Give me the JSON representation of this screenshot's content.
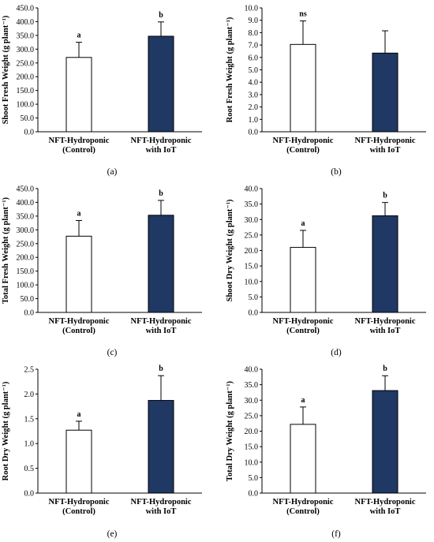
{
  "colors": {
    "control_fill": "#ffffff",
    "iot_fill": "#1f3864",
    "bar_stroke": "#000000",
    "axis": "#000000"
  },
  "chart_data": [
    {
      "type": "bar",
      "panel_label": "(a)",
      "ylabel": "Shoot Fresh Weight (g plant⁻¹)",
      "categories": [
        "NFT-Hydroponic\n(Control)",
        "NFT-Hydroponic\nwith IoT"
      ],
      "values": [
        270,
        347
      ],
      "errors": [
        55,
        52
      ],
      "letters": [
        "a",
        "b"
      ],
      "ylim": [
        0,
        450
      ],
      "yticks": [
        "0.0",
        "50.0",
        "100.0",
        "150.0",
        "200.0",
        "250.0",
        "300.0",
        "350.0",
        "400.0",
        "450.0"
      ]
    },
    {
      "type": "bar",
      "panel_label": "(b)",
      "ylabel": "Root Fresh Weight (g plant⁻¹)",
      "categories": [
        "NFT-Hydroponic\n(Control)",
        "NFT-Hydroponic\nwith IoT"
      ],
      "values": [
        7.05,
        6.35
      ],
      "errors": [
        1.9,
        1.8
      ],
      "letters": [
        "ns",
        ""
      ],
      "ylim": [
        0,
        10
      ],
      "yticks": [
        "0.0",
        "1.0",
        "2.0",
        "3.0",
        "4.0",
        "5.0",
        "6.0",
        "7.0",
        "8.0",
        "9.0",
        "10.0"
      ]
    },
    {
      "type": "bar",
      "panel_label": "(c)",
      "ylabel": "Total Fresh Weight (g plant⁻¹)",
      "categories": [
        "NFT-Hydroponic\n(Control)",
        "NFT-Hydroponic\nwith IoT"
      ],
      "values": [
        277,
        353
      ],
      "errors": [
        57,
        54
      ],
      "letters": [
        "a",
        "b"
      ],
      "ylim": [
        0,
        450
      ],
      "yticks": [
        "0.0",
        "50.0",
        "100.0",
        "150.0",
        "200.0",
        "250.0",
        "300.0",
        "350.0",
        "400.0",
        "450.0"
      ]
    },
    {
      "type": "bar",
      "panel_label": "(d)",
      "ylabel": "Shoot Dry Weight (g plant⁻¹)",
      "categories": [
        "NFT-Hydroponic\n(Control)",
        "NFT-Hydroponic\nwith IoT"
      ],
      "values": [
        21.0,
        31.2
      ],
      "errors": [
        5.5,
        4.3
      ],
      "letters": [
        "a",
        "b"
      ],
      "ylim": [
        0,
        40
      ],
      "yticks": [
        "0.0",
        "5.0",
        "10.0",
        "15.0",
        "20.0",
        "25.0",
        "30.0",
        "35.0",
        "40.0"
      ]
    },
    {
      "type": "bar",
      "panel_label": "(e)",
      "ylabel": "Root Dry Weight (g plant⁻¹)",
      "categories": [
        "NFT-Hydroponic\n(Control)",
        "NFT-Hydroponic\nwith IoT"
      ],
      "values": [
        1.27,
        1.87
      ],
      "errors": [
        0.18,
        0.5
      ],
      "letters": [
        "a",
        "b"
      ],
      "ylim": [
        0,
        2.5
      ],
      "yticks": [
        "0.0",
        "0.5",
        "1.0",
        "1.5",
        "2.0",
        "2.5"
      ]
    },
    {
      "type": "bar",
      "panel_label": "(f)",
      "ylabel": "Total Dry Weight (g plant⁻¹)",
      "categories": [
        "NFT-Hydroponic\n(Control)",
        "NFT-Hydroponic\nwith IoT"
      ],
      "values": [
        22.2,
        33.1
      ],
      "errors": [
        5.6,
        4.8
      ],
      "letters": [
        "a",
        "b"
      ],
      "ylim": [
        0,
        40
      ],
      "yticks": [
        "0.0",
        "5.0",
        "10.0",
        "15.0",
        "20.0",
        "25.0",
        "30.0",
        "35.0",
        "40.0"
      ]
    }
  ]
}
